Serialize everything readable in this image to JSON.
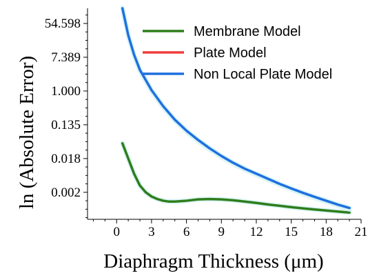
{
  "chart_data": {
    "type": "line",
    "title": "",
    "xlabel": "Diaphragm Thickness (μm)",
    "ylabel": "ln (Absolute Error)",
    "xlim": [
      -2.5,
      21
    ],
    "ylim": [
      -7.6,
      4.9
    ],
    "x_ticks": [
      0,
      3,
      6,
      9,
      12,
      15,
      18,
      21
    ],
    "y_ticks": [
      {
        "ln": 4,
        "label": "54.598"
      },
      {
        "ln": 2,
        "label": "7.389"
      },
      {
        "ln": 0,
        "label": "1.000"
      },
      {
        "ln": -2,
        "label": "0.135"
      },
      {
        "ln": -4,
        "label": "0.018"
      },
      {
        "ln": -6,
        "label": "0.002"
      }
    ],
    "grid": false,
    "legend_position": "top-right",
    "series": [
      {
        "name": "Membrane Model",
        "color": "#2e7d1b",
        "x": [
          0.5,
          1,
          1.5,
          2,
          2.5,
          3,
          3.5,
          4,
          4.5,
          5,
          6,
          7,
          8,
          9,
          10,
          11,
          12,
          13,
          14,
          15,
          16,
          17,
          18,
          19,
          20
        ],
        "y": [
          -3.1,
          -4.0,
          -4.9,
          -5.6,
          -6.0,
          -6.25,
          -6.4,
          -6.5,
          -6.55,
          -6.55,
          -6.5,
          -6.42,
          -6.4,
          -6.42,
          -6.47,
          -6.55,
          -6.63,
          -6.72,
          -6.8,
          -6.88,
          -6.95,
          -7.02,
          -7.08,
          -7.14,
          -7.2
        ]
      },
      {
        "name": "Plate Model",
        "color": "#f03c3c",
        "x": [
          0.5,
          1,
          1.5,
          2,
          2.5,
          3,
          4,
          5,
          6,
          7,
          8,
          9,
          10,
          11,
          12,
          13,
          14,
          15,
          16,
          17,
          18,
          19,
          20
        ],
        "y": [
          4.9,
          3.3,
          2.1,
          1.2,
          0.6,
          0.0,
          -0.95,
          -1.75,
          -2.4,
          -2.95,
          -3.45,
          -3.9,
          -4.3,
          -4.65,
          -4.95,
          -5.25,
          -5.55,
          -5.82,
          -6.08,
          -6.32,
          -6.55,
          -6.78,
          -7.0
        ]
      },
      {
        "name": "Non Local Plate Model",
        "color": "#1e6fe0",
        "x": [
          0.5,
          1,
          1.5,
          2,
          2.5,
          3,
          4,
          5,
          6,
          7,
          8,
          9,
          10,
          11,
          12,
          13,
          14,
          15,
          16,
          17,
          18,
          19,
          20
        ],
        "y": [
          4.9,
          3.3,
          2.15,
          1.25,
          0.65,
          0.05,
          -0.9,
          -1.7,
          -2.35,
          -2.9,
          -3.4,
          -3.85,
          -4.25,
          -4.6,
          -4.9,
          -5.2,
          -5.5,
          -5.77,
          -6.03,
          -6.27,
          -6.5,
          -6.73,
          -6.93
        ]
      }
    ]
  }
}
